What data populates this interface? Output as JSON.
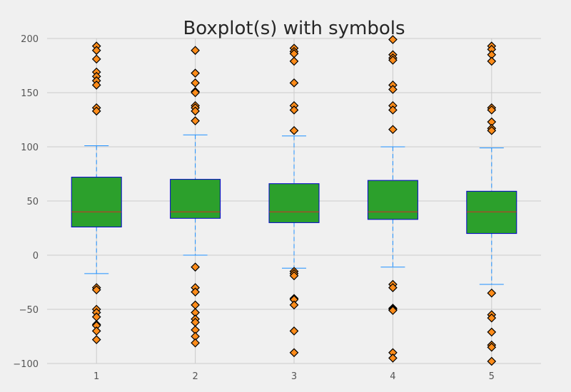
{
  "chart_data": {
    "type": "box",
    "title": "Boxplot(s) with symbols",
    "xlabel": "",
    "ylabel": "",
    "ylim": [
      -100,
      200
    ],
    "yticks": [
      -100,
      -50,
      0,
      50,
      100,
      150,
      200
    ],
    "ytick_labels": [
      "−100",
      "−50",
      "0",
      "50",
      "100",
      "150",
      "200"
    ],
    "grid": true,
    "categories": [
      "1",
      "2",
      "3",
      "4",
      "5"
    ],
    "boxes": [
      {
        "label": "1",
        "whisker_low": -17,
        "q1": 26,
        "median": 40,
        "q3": 72,
        "whisker_high": 101,
        "outliers": [
          193,
          189,
          181,
          169,
          165,
          161,
          157,
          136,
          133,
          -30,
          -32,
          -50,
          -53,
          -57,
          -64,
          -65,
          -70,
          -78
        ]
      },
      {
        "label": "2",
        "whisker_low": 0,
        "q1": 34,
        "median": 40,
        "q3": 70,
        "whisker_high": 111,
        "outliers": [
          189,
          168,
          159,
          151,
          150,
          138,
          136,
          133,
          124,
          -11,
          -30,
          -34,
          -46,
          -53,
          -59,
          -62,
          -69,
          -75,
          -81
        ]
      },
      {
        "label": "3",
        "whisker_low": -12,
        "q1": 30,
        "median": 40,
        "q3": 66,
        "whisker_high": 110,
        "outliers": [
          191,
          188,
          186,
          179,
          159,
          138,
          134,
          115,
          -15,
          -17,
          -19,
          -40,
          -41,
          -46,
          -70,
          -90
        ]
      },
      {
        "label": "4",
        "whisker_low": -11,
        "q1": 33,
        "median": 40,
        "q3": 69,
        "whisker_high": 100,
        "outliers": [
          199,
          185,
          182,
          180,
          157,
          153,
          138,
          134,
          116,
          -27,
          -30,
          -49,
          -50,
          -51,
          -90,
          -95
        ]
      },
      {
        "label": "5",
        "whisker_low": -27,
        "q1": 20,
        "median": 40,
        "q3": 59,
        "whisker_high": 99,
        "outliers": [
          193,
          190,
          185,
          179,
          136,
          134,
          123,
          117,
          115,
          -35,
          -55,
          -58,
          -71,
          -83,
          -85,
          -98
        ]
      }
    ],
    "colors": {
      "background": "#f0f0f0",
      "grid": "#cbcbcb",
      "box_fill": "#2ca02c",
      "box_edge": "#0000cc",
      "median": "#d62728",
      "whisker": "#1e90ff",
      "outlier_fill": "#ff8c1a",
      "outlier_edge": "#000000"
    },
    "outlier_symbol": "diamond"
  }
}
